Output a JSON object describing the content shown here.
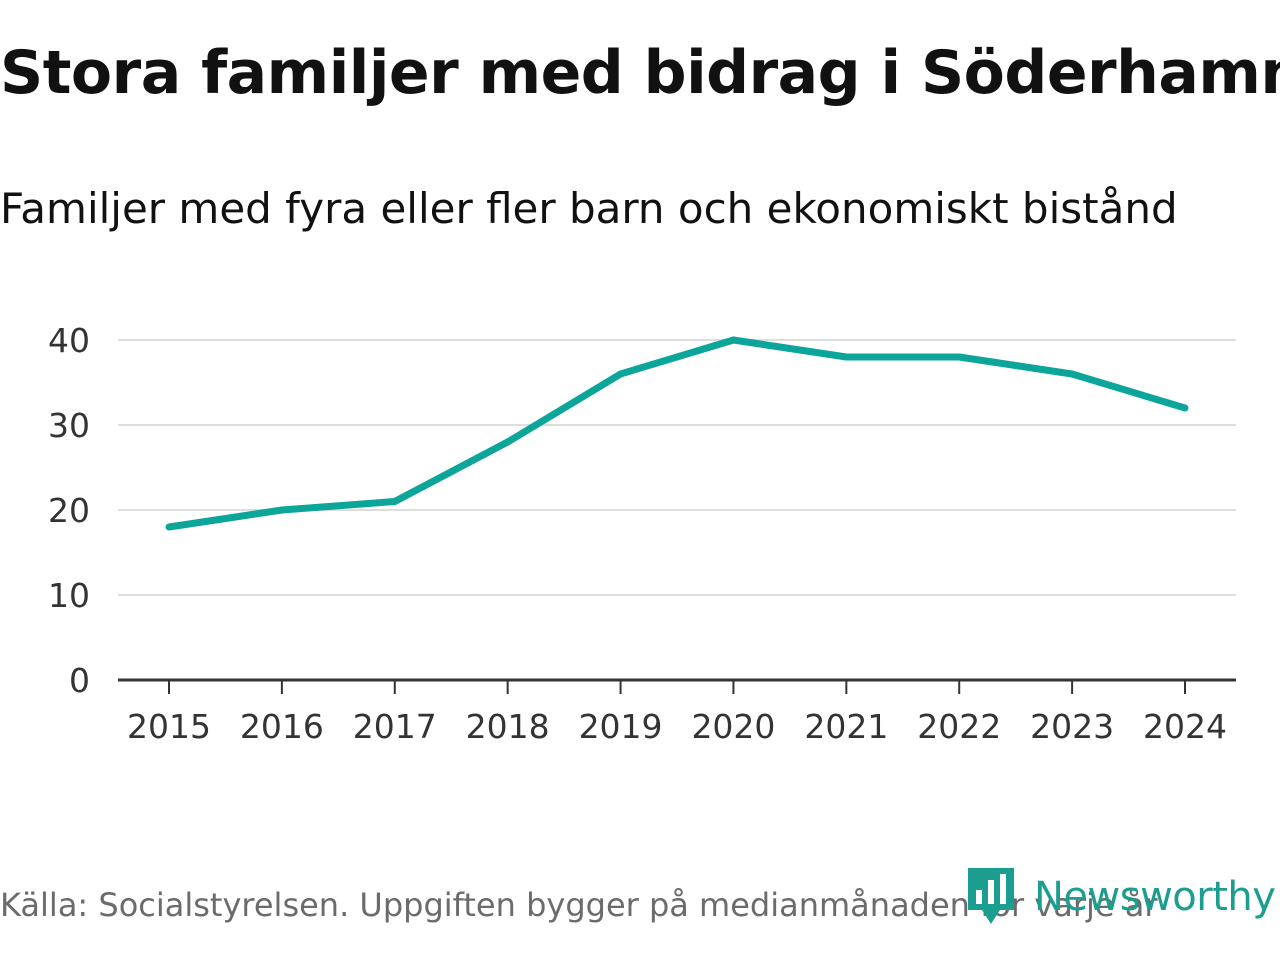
{
  "title": "Stora familjer med bidrag i Söderhamn",
  "subtitle": "Familjer med fyra eller fler barn och ekonomiskt bistånd",
  "source": "Källa: Socialstyrelsen. Uppgiften bygger på medianmånaden för varje år",
  "logo": {
    "text": "Newsworthy",
    "icon": "newsworthy-chart-icon"
  },
  "colors": {
    "line": "#0ca59a",
    "grid": "#dddddd",
    "axis": "#333333",
    "brand": "#1b9e8f"
  },
  "chart_data": {
    "type": "line",
    "title": "Stora familjer med bidrag i Söderhamn",
    "subtitle": "Familjer med fyra eller fler barn och ekonomiskt bistånd",
    "xlabel": "",
    "ylabel": "",
    "categories": [
      "2015",
      "2016",
      "2017",
      "2018",
      "2019",
      "2020",
      "2021",
      "2022",
      "2023",
      "2024"
    ],
    "series": [
      {
        "name": "Familjer med fyra eller fler barn och ekonomiskt bistånd",
        "values": [
          18,
          20,
          21,
          28,
          36,
          40,
          38,
          38,
          36,
          32
        ]
      }
    ],
    "ylim": [
      0,
      40
    ],
    "yticks": [
      0,
      10,
      20,
      30,
      40
    ],
    "grid": true,
    "legend": "none"
  }
}
